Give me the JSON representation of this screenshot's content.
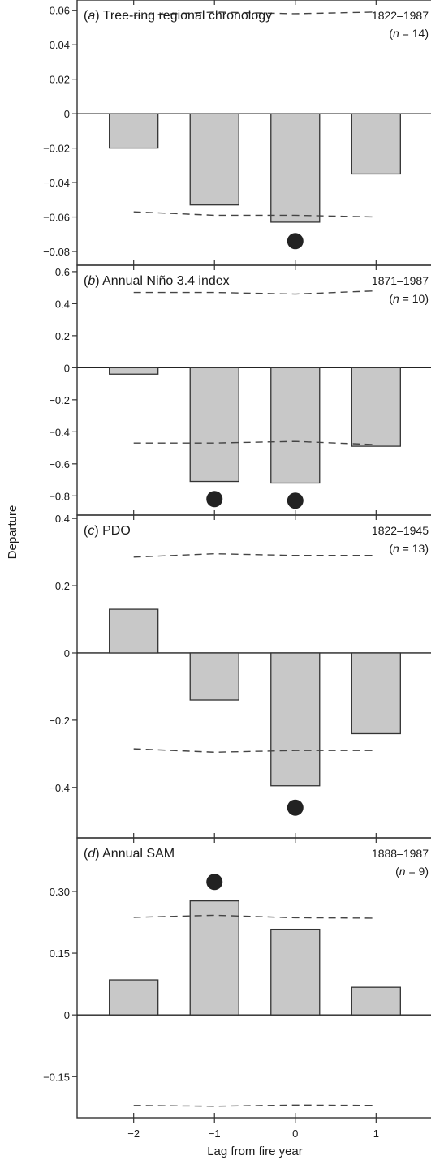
{
  "chart_data": {
    "type": "bar",
    "ylabel": "Departure",
    "xlabel": "Lag from fire year",
    "x_ticks": [
      "−2",
      "−1",
      "0",
      "1"
    ],
    "x_values": [
      -2,
      -1,
      0,
      1
    ],
    "xlim": [
      -2.7,
      1.7
    ],
    "colors": {
      "bar_fill": "#c8c8c8",
      "bar_stroke": "#333333",
      "dot": "#222222",
      "dash": "#444444"
    },
    "panels": [
      {
        "tag": "a",
        "title_pre": "(",
        "title_post": ") Tree-ring regional chronology",
        "period": "1822–1987",
        "n_pre": "(",
        "n_post": " = 14)",
        "ylim": [
          -0.088,
          0.066
        ],
        "yticks": [
          0.06,
          0.04,
          0.02,
          0,
          -0.02,
          -0.04,
          -0.06,
          -0.08
        ],
        "ytick_labels": [
          "0.06",
          "0.04",
          "0.02",
          "0",
          "−0.02",
          "−0.04",
          "−0.06",
          "−0.08"
        ],
        "values": [
          -0.02,
          -0.053,
          -0.063,
          -0.035
        ],
        "ci_upper": [
          0.057,
          0.059,
          0.058,
          0.059
        ],
        "ci_lower": [
          -0.057,
          -0.059,
          -0.059,
          -0.06
        ],
        "significant": [
          {
            "x": 0,
            "y": -0.074
          }
        ]
      },
      {
        "tag": "b",
        "title_pre": "(",
        "title_post": ") Annual Niño 3.4 index",
        "period": "1871–1987",
        "n_pre": "(",
        "n_post": " = 10)",
        "ylim": [
          -0.92,
          0.64
        ],
        "yticks": [
          0.6,
          0.4,
          0.2,
          0,
          -0.2,
          -0.4,
          -0.6,
          -0.8
        ],
        "ytick_labels": [
          "0.6",
          "0.4",
          "0.2",
          "0",
          "−0.2",
          "−0.4",
          "−0.6",
          "−0.8"
        ],
        "values": [
          -0.04,
          -0.71,
          -0.72,
          -0.49
        ],
        "ci_upper": [
          0.47,
          0.47,
          0.46,
          0.48
        ],
        "ci_lower": [
          -0.47,
          -0.47,
          -0.46,
          -0.48
        ],
        "significant": [
          {
            "x": -1,
            "y": -0.82
          },
          {
            "x": 0,
            "y": -0.83
          }
        ]
      },
      {
        "tag": "c",
        "title_pre": "(",
        "title_post": ") PDO",
        "period": "1822–1945",
        "n_pre": "(",
        "n_post": " = 13)",
        "ylim": [
          -0.55,
          0.41
        ],
        "yticks": [
          0.4,
          0.2,
          0,
          -0.2,
          -0.4
        ],
        "ytick_labels": [
          "0.4",
          "0.2",
          "0",
          "−0.2",
          "−0.4"
        ],
        "values": [
          0.13,
          -0.14,
          -0.395,
          -0.24
        ],
        "ci_upper": [
          0.285,
          0.295,
          0.29,
          0.29
        ],
        "ci_lower": [
          -0.285,
          -0.295,
          -0.29,
          -0.29
        ],
        "significant": [
          {
            "x": 0,
            "y": -0.46
          }
        ]
      },
      {
        "tag": "d",
        "title_pre": "(",
        "title_post": ") Annual SAM",
        "period": "1888–1987",
        "n_pre": "(",
        "n_post": " = 9)",
        "ylim": [
          -0.25,
          0.43
        ],
        "yticks": [
          0.3,
          0.15,
          0,
          -0.15
        ],
        "ytick_labels": [
          "0.30",
          "0.15",
          "0",
          "−0.15"
        ],
        "values": [
          0.085,
          0.277,
          0.208,
          0.067
        ],
        "ci_upper": [
          0.237,
          0.242,
          0.236,
          0.235
        ],
        "ci_lower": [
          -0.22,
          -0.222,
          -0.219,
          -0.22
        ],
        "significant": [
          {
            "x": -1,
            "y": 0.323
          }
        ]
      }
    ]
  }
}
